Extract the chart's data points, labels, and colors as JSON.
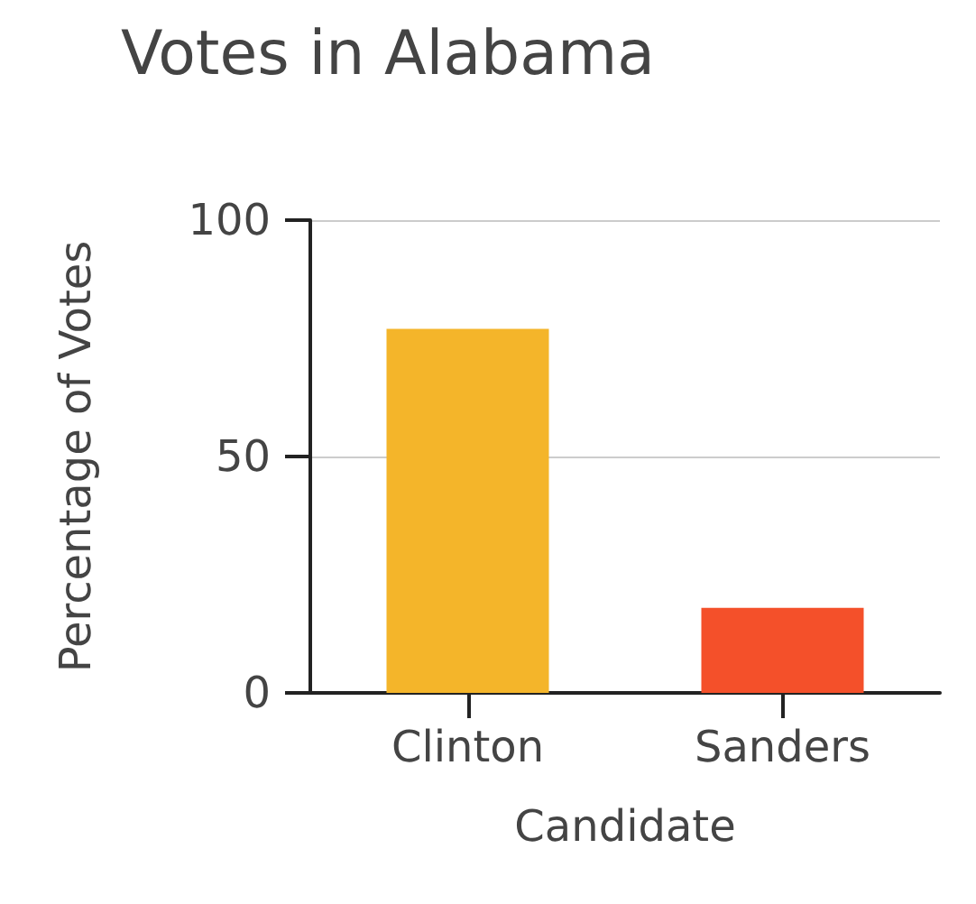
{
  "chart_data": {
    "type": "bar",
    "title": "Votes in Alabama",
    "xlabel": "Candidate",
    "ylabel": "Percentage of Votes",
    "categories": [
      "Clinton",
      "Sanders"
    ],
    "values": [
      77,
      18
    ],
    "colors": [
      "#f4b52a",
      "#f4502a"
    ],
    "ylim": [
      0,
      100
    ],
    "yticks": [
      0,
      50,
      100
    ],
    "grid": "y"
  }
}
